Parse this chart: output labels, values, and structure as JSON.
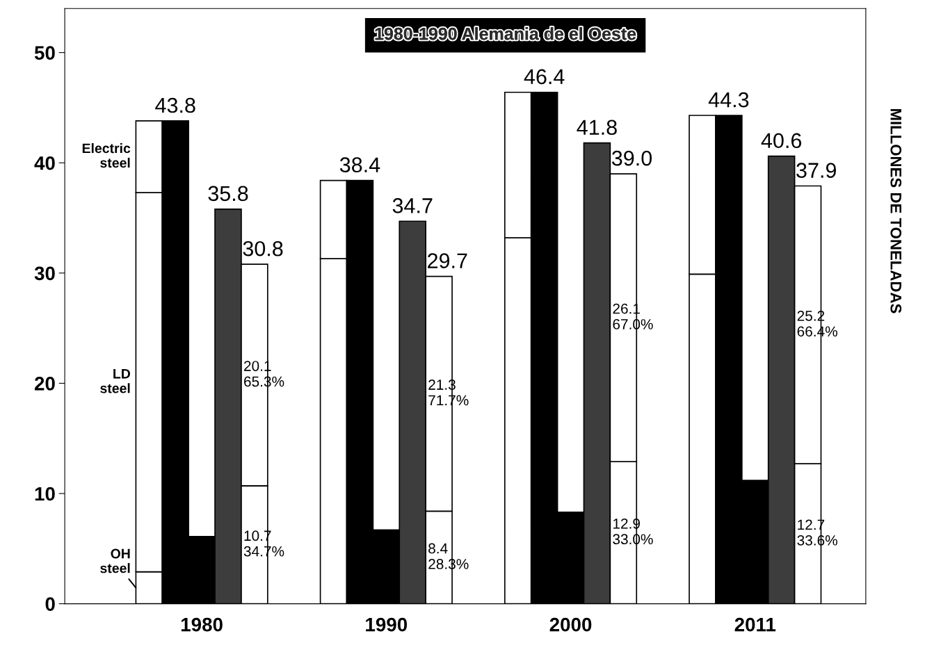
{
  "chart_data": {
    "type": "bar",
    "title": "1980-1990 Alemania de el Oeste",
    "ylabel": "MILLONES DE TONELADAS",
    "stacked": true,
    "categories": [
      null,
      null,
      "1980",
      null,
      null,
      null,
      null,
      null,
      null,
      "1990",
      null,
      null,
      null,
      null,
      null,
      null,
      "2000",
      null,
      null,
      null,
      null,
      null,
      null,
      "2011",
      null,
      null
    ],
    "ylim": [
      0,
      54
    ],
    "yticks": [
      0,
      10,
      20,
      30,
      40,
      50
    ],
    "series": [
      {
        "name": "OH steel",
        "color": "#ffffff",
        "values": [
          2.9,
          null,
          null,
          null,
          null,
          null,
          null,
          null,
          null,
          null,
          null,
          null,
          null,
          null,
          null,
          null,
          null,
          null,
          null,
          null,
          null,
          null,
          null,
          null,
          null,
          null
        ]
      },
      {
        "name": "LD steel",
        "color": "#ffffff",
        "values": [
          34.4,
          null,
          null,
          null,
          null,
          null,
          null,
          31.3,
          null,
          null,
          null,
          null,
          null,
          null,
          33.2,
          null,
          null,
          null,
          null,
          null,
          null,
          29.9,
          null,
          null,
          null,
          null
        ]
      },
      {
        "name": "Electric steel",
        "color": "#ffffff",
        "values": [
          6.5,
          null,
          null,
          null,
          null,
          null,
          null,
          7.1,
          null,
          null,
          null,
          null,
          null,
          null,
          13.2,
          null,
          null,
          null,
          null,
          null,
          null,
          14.4,
          null,
          null,
          null,
          null
        ]
      },
      {
        "color": "#000000",
        "values": [
          null,
          43.8,
          null,
          null,
          null,
          null,
          null,
          null,
          38.4,
          null,
          null,
          null,
          null,
          null,
          null,
          46.4,
          null,
          null,
          null,
          null,
          null,
          null,
          44.3,
          null,
          null,
          null
        ],
        "value_labels": [
          null,
          "43.8",
          null,
          null,
          null,
          null,
          null,
          null,
          "38.4",
          null,
          null,
          null,
          null,
          null,
          null,
          "46.4",
          null,
          null,
          null,
          null,
          null,
          null,
          "44.3",
          null,
          null,
          null
        ]
      },
      {
        "color": "#000000",
        "values": [
          null,
          null,
          6.1,
          null,
          null,
          null,
          null,
          null,
          null,
          6.7,
          null,
          null,
          null,
          null,
          null,
          null,
          8.3,
          null,
          null,
          null,
          null,
          null,
          null,
          11.2,
          null,
          null
        ]
      },
      {
        "color": "#3d3d3d",
        "values": [
          null,
          null,
          null,
          35.8,
          null,
          null,
          null,
          null,
          null,
          null,
          34.7,
          null,
          null,
          null,
          null,
          null,
          null,
          41.8,
          null,
          null,
          null,
          null,
          null,
          null,
          40.6,
          null
        ],
        "value_labels": [
          null,
          null,
          null,
          "35.8",
          null,
          null,
          null,
          null,
          null,
          null,
          "34.7",
          null,
          null,
          null,
          null,
          null,
          null,
          "41.8",
          null,
          null,
          null,
          null,
          null,
          null,
          "40.6",
          null
        ]
      },
      {
        "color": "#ffffff",
        "values": [
          null,
          null,
          null,
          null,
          10.7,
          null,
          null,
          null,
          null,
          null,
          null,
          8.4,
          null,
          null,
          null,
          null,
          null,
          null,
          12.9,
          null,
          null,
          null,
          null,
          null,
          null,
          12.7
        ],
        "value_labels": [
          null,
          null,
          null,
          null,
          "10.7\n34.7%",
          null,
          null,
          null,
          null,
          null,
          null,
          "8.4\n28.3%",
          null,
          null,
          null,
          null,
          null,
          null,
          "12.9\n33.0%",
          null,
          null,
          null,
          null,
          null,
          null,
          "12.7\n33.6%"
        ]
      },
      {
        "color": "#ffffff",
        "values": [
          null,
          null,
          null,
          null,
          20.1,
          null,
          null,
          null,
          null,
          null,
          null,
          21.3,
          null,
          null,
          null,
          null,
          null,
          null,
          26.1,
          null,
          null,
          null,
          null,
          null,
          null,
          25.2
        ],
        "value_labels": [
          null,
          null,
          null,
          null,
          "20.1\n65.3%",
          null,
          null,
          null,
          null,
          null,
          null,
          "21.3\n71.7%",
          null,
          null,
          null,
          null,
          null,
          null,
          "26.1\n67.0%",
          null,
          null,
          null,
          null,
          null,
          null,
          "25.2\n66.4%"
        ]
      }
    ],
    "totals": [
      null,
      null,
      null,
      null,
      "30.8",
      null,
      null,
      null,
      null,
      null,
      null,
      "29.7",
      null,
      null,
      null,
      null,
      null,
      null,
      "39.0",
      null,
      null,
      null,
      null,
      null,
      null,
      "37.9"
    ]
  }
}
